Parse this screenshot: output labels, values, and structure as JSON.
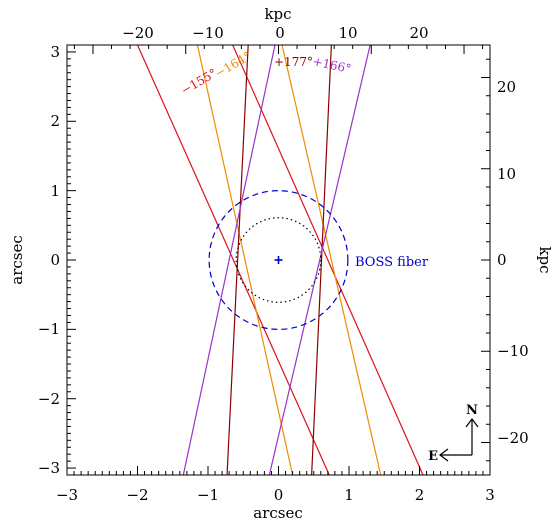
{
  "chart_data": {
    "type": "line",
    "xlabel_bottom": "arcsec",
    "ylabel_left": "arcsec",
    "xlabel_top": "kpc",
    "ylabel_right": "kpc",
    "xlim": [
      -3,
      3
    ],
    "ylim": [
      -3.1,
      3.1
    ],
    "x_ticks": [
      "−3",
      "−2",
      "−1",
      "0",
      "1",
      "2",
      "3"
    ],
    "y_ticks": [
      "−3",
      "−2",
      "−1",
      "0",
      "1",
      "2",
      "3"
    ],
    "kpc_per_arcsec": 7.6,
    "top_ticks": [
      "−20",
      "−10",
      "0",
      "10",
      "20"
    ],
    "right_ticks": [
      "−20",
      "−10",
      "0",
      "10",
      "20"
    ],
    "boss_fiber": {
      "label": "BOSS fiber",
      "radius_arcsec": 1.0,
      "color": "#0000cc"
    },
    "dotted_circle": {
      "radius_arcsec": 0.61,
      "color": "#000000"
    },
    "center_marker": {
      "x": 0,
      "y": 0,
      "color": "#0000cc"
    },
    "series": [
      {
        "name": "−155°",
        "color": "#e0101a",
        "lines": [
          [
            [
              -2.0,
              3.1
            ],
            [
              0.72,
              -3.1
            ]
          ],
          [
            [
              -0.65,
              3.1
            ],
            [
              2.05,
              -3.1
            ]
          ]
        ]
      },
      {
        "name": "−164°",
        "color": "#f08c00",
        "lines": [
          [
            [
              -1.15,
              3.1
            ],
            [
              0.2,
              -3.1
            ]
          ],
          [
            [
              0.05,
              3.1
            ],
            [
              1.45,
              -3.1
            ]
          ]
        ]
      },
      {
        "name": "+177°",
        "color": "#8b0000",
        "lines": [
          [
            [
              -0.43,
              3.1
            ],
            [
              -0.73,
              -3.1
            ]
          ],
          [
            [
              0.75,
              3.1
            ],
            [
              0.47,
              -3.1
            ]
          ]
        ]
      },
      {
        "name": "+166°",
        "color": "#9932cc",
        "lines": [
          [
            [
              -0.05,
              3.1
            ],
            [
              -1.35,
              -3.1
            ]
          ],
          [
            [
              1.3,
              3.1
            ],
            [
              -0.13,
              -3.1
            ]
          ]
        ]
      }
    ],
    "compass": {
      "north": "N",
      "east": "E"
    }
  }
}
